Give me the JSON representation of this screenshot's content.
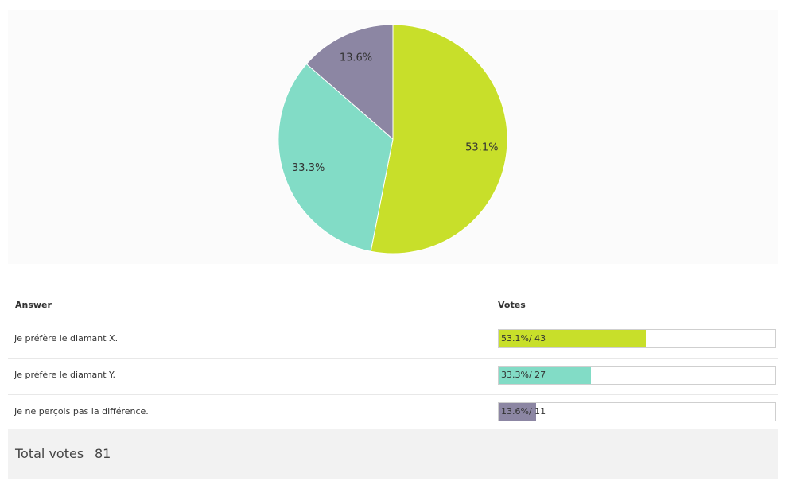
{
  "chart_data": {
    "type": "pie",
    "slices": [
      {
        "label": "Je préfère le diamant X.",
        "percent": 53.1,
        "percent_label": "53.1%",
        "votes": 43,
        "color": "#c8df2a"
      },
      {
        "label": "Je préfère le diamant Y.",
        "percent": 33.3,
        "percent_label": "33.3%",
        "votes": 27,
        "color": "#82dcc6"
      },
      {
        "label": "Je ne perçois pas la différence.",
        "percent": 13.6,
        "percent_label": "13.6%",
        "votes": 11,
        "color": "#8c86a3"
      }
    ]
  },
  "table": {
    "header_answer": "Answer",
    "header_votes": "Votes",
    "rows": [
      {
        "answer": "Je préfère le diamant X.",
        "votes_text": "53.1%/ 43",
        "fraction": 0.531,
        "color": "#c8df2a"
      },
      {
        "answer": "Je préfère le diamant Y.",
        "votes_text": "33.3%/ 27",
        "fraction": 0.333,
        "color": "#82dcc6"
      },
      {
        "answer": "Je ne perçois pas la différence.",
        "votes_text": "13.6%/ 11",
        "fraction": 0.136,
        "color": "#8c86a3"
      }
    ]
  },
  "total": {
    "label": "Total votes",
    "value": "81"
  }
}
